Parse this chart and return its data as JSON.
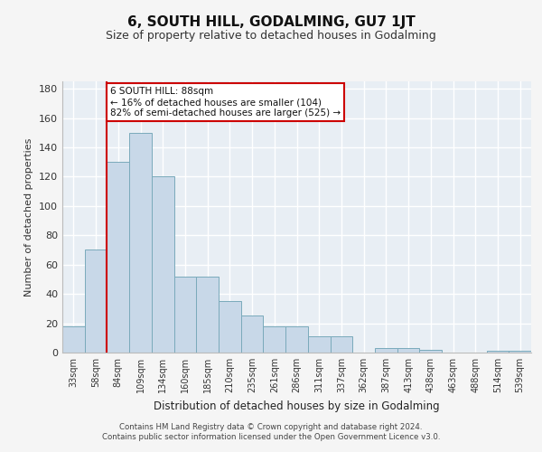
{
  "title": "6, SOUTH HILL, GODALMING, GU7 1JT",
  "subtitle": "Size of property relative to detached houses in Godalming",
  "xlabel": "Distribution of detached houses by size in Godalming",
  "ylabel": "Number of detached properties",
  "categories": [
    "33sqm",
    "58sqm",
    "84sqm",
    "109sqm",
    "134sqm",
    "160sqm",
    "185sqm",
    "210sqm",
    "235sqm",
    "261sqm",
    "286sqm",
    "311sqm",
    "337sqm",
    "362sqm",
    "387sqm",
    "413sqm",
    "438sqm",
    "463sqm",
    "488sqm",
    "514sqm",
    "539sqm"
  ],
  "values": [
    18,
    70,
    130,
    150,
    120,
    52,
    52,
    35,
    25,
    18,
    18,
    11,
    11,
    0,
    3,
    3,
    2,
    0,
    0,
    1,
    1
  ],
  "bar_color": "#c8d8e8",
  "bar_edge_color": "#7aaabb",
  "background_color": "#e8eef4",
  "grid_color": "#ffffff",
  "vline_color": "#cc0000",
  "vline_x": 1.5,
  "annotation_text": "6 SOUTH HILL: 88sqm\n← 16% of detached houses are smaller (104)\n82% of semi-detached houses are larger (525) →",
  "annotation_box_color": "#ffffff",
  "annotation_box_edge": "#cc0000",
  "ylim": [
    0,
    185
  ],
  "yticks": [
    0,
    20,
    40,
    60,
    80,
    100,
    120,
    140,
    160,
    180
  ],
  "fig_bg_color": "#f5f5f5",
  "footer_line1": "Contains HM Land Registry data © Crown copyright and database right 2024.",
  "footer_line2": "Contains public sector information licensed under the Open Government Licence v3.0."
}
